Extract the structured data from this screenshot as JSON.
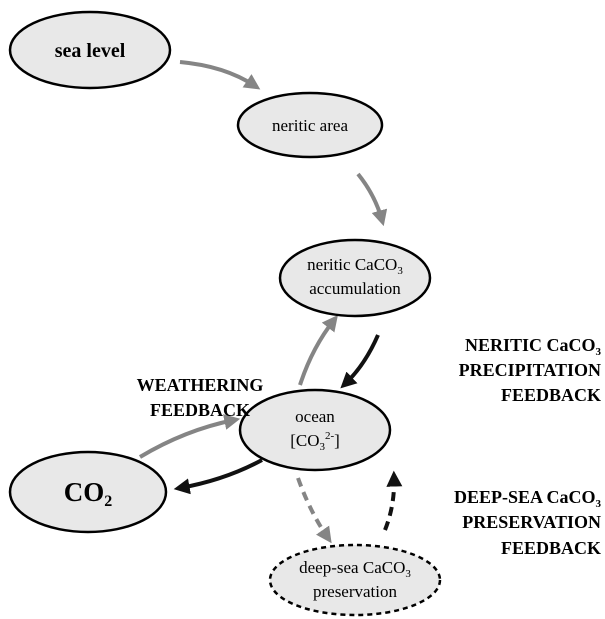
{
  "nodes": [
    {
      "label": [
        "sea level"
      ]
    },
    {
      "label": [
        "neritic area"
      ]
    },
    {
      "label": [
        "neritic CaCO",
        "3",
        "accumulation"
      ]
    },
    {
      "label": [
        "ocean",
        "[CO",
        "3",
        "2-",
        "]"
      ]
    },
    {
      "label": [
        "CO",
        "2"
      ]
    },
    {
      "label": [
        "deep-sea CaCO",
        "3",
        "preservation"
      ]
    }
  ],
  "feedbacks": [
    {
      "lines": [
        "NERITIC CaCO",
        "3",
        "PRECIPITATION",
        "FEEDBACK"
      ]
    },
    {
      "lines": [
        "WEATHERING",
        "FEEDBACK"
      ]
    },
    {
      "lines": [
        "DEEP-SEA CaCO",
        "3",
        "PRESERVATION",
        "FEEDBACK"
      ]
    }
  ]
}
